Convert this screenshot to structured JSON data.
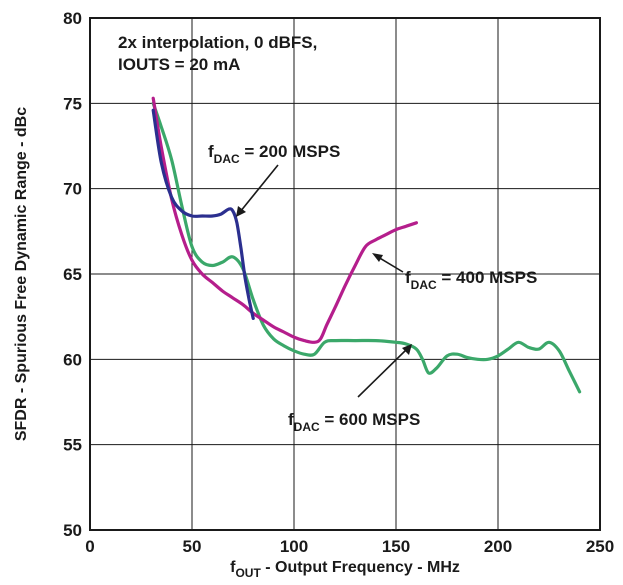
{
  "chart_data": {
    "type": "line",
    "xlim": [
      0,
      250
    ],
    "ylim": [
      50,
      80
    ],
    "x_ticks": [
      "0",
      "50",
      "100",
      "150",
      "200",
      "250"
    ],
    "y_ticks": [
      "50",
      "55",
      "60",
      "65",
      "70",
      "75",
      "80"
    ],
    "grid": true,
    "ylabel": "SFDR - Spurious Free Dynamic Range - dBc",
    "xlabel": {
      "main": "f",
      "sub": "OUT",
      "rest": " - Output Frequency - MHz"
    },
    "condition_lines": [
      "2x interpolation, 0 dBFS,",
      "IOUTS = 20 mA"
    ],
    "series": [
      {
        "name": {
          "main": "f",
          "sub": "DAC",
          "rest": " = 200 MSPS"
        },
        "color": "#2b2f8f",
        "x": [
          31,
          35,
          40,
          45,
          50,
          55,
          60,
          64,
          68,
          70,
          72,
          74,
          76,
          78,
          80
        ],
        "y": [
          74.6,
          71.5,
          69.5,
          68.7,
          68.4,
          68.4,
          68.4,
          68.5,
          68.8,
          68.7,
          68.0,
          66.5,
          64.8,
          63.5,
          62.4
        ]
      },
      {
        "name": {
          "main": "f",
          "sub": "DAC",
          "rest": " = 400 MSPS"
        },
        "color": "#b51e8c",
        "x": [
          31,
          35,
          40,
          45,
          50,
          55,
          60,
          65,
          70,
          75,
          80,
          85,
          90,
          95,
          100,
          105,
          110,
          113,
          116,
          120,
          125,
          130,
          135,
          140,
          145,
          150,
          155,
          160
        ],
        "y": [
          75.3,
          72.4,
          69.4,
          67.3,
          65.8,
          65.0,
          64.5,
          64.0,
          63.6,
          63.2,
          62.7,
          62.3,
          61.9,
          61.6,
          61.3,
          61.1,
          61.0,
          61.2,
          62.0,
          63.0,
          64.3,
          65.5,
          66.6,
          67.0,
          67.3,
          67.6,
          67.8,
          68.0
        ]
      },
      {
        "name": {
          "main": "f",
          "sub": "DAC",
          "rest": " = 600 MSPS"
        },
        "color": "#3ba86a",
        "x": [
          31,
          35,
          40,
          45,
          50,
          55,
          60,
          65,
          70,
          75,
          80,
          85,
          90,
          95,
          100,
          105,
          110,
          115,
          120,
          130,
          140,
          150,
          155,
          160,
          163,
          166,
          170,
          175,
          180,
          185,
          190,
          195,
          200,
          205,
          210,
          215,
          220,
          225,
          230,
          235,
          240
        ],
        "y": [
          75.0,
          73.6,
          71.7,
          69.0,
          66.6,
          65.7,
          65.5,
          65.7,
          66.0,
          65.3,
          63.5,
          62.0,
          61.2,
          60.8,
          60.5,
          60.3,
          60.3,
          61.0,
          61.1,
          61.1,
          61.1,
          61.0,
          60.9,
          60.6,
          60.0,
          59.2,
          59.5,
          60.2,
          60.3,
          60.1,
          60.0,
          60.0,
          60.2,
          60.6,
          61.0,
          60.7,
          60.6,
          61.0,
          60.5,
          59.3,
          58.1
        ]
      }
    ]
  }
}
